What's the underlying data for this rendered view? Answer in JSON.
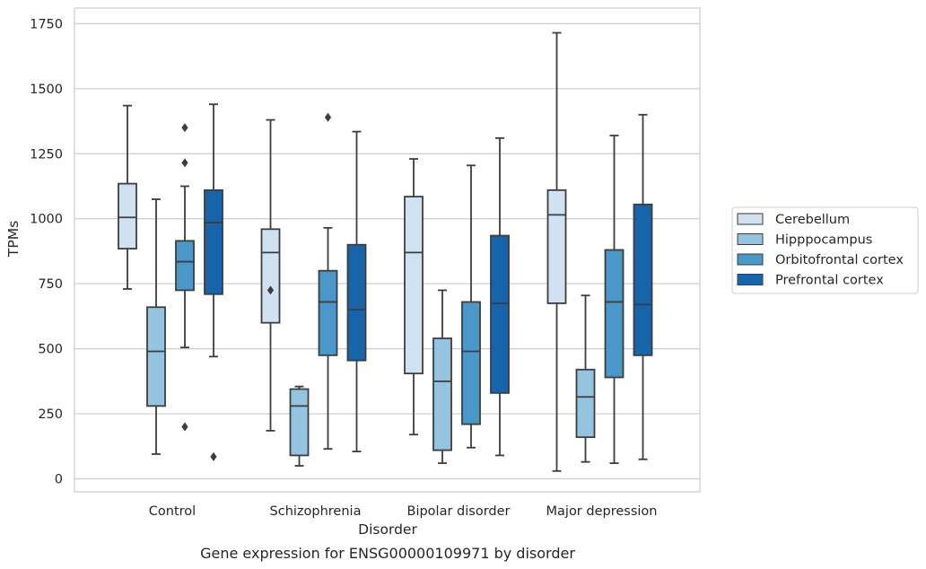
{
  "chart_data": {
    "type": "box",
    "xlabel": "Disorder",
    "ylabel": "TPMs",
    "caption": "Gene expression for ENSG00000109971 by disorder",
    "categories": [
      "Control",
      "Schizophrenia",
      "Bipolar disorder",
      "Major depression"
    ],
    "ylim": [
      -50,
      1810
    ],
    "yticks": [
      0,
      250,
      500,
      750,
      1000,
      1250,
      1500,
      1750
    ],
    "grid": "horizontal",
    "legend_position": "right",
    "series": [
      {
        "name": "Cerebellum",
        "color": "#d0e1f2",
        "boxes": [
          {
            "whislo": 730,
            "q1": 885,
            "med": 1005,
            "q3": 1135,
            "whishi": 1435,
            "fliers": []
          },
          {
            "whislo": 185,
            "q1": 600,
            "med": 870,
            "q3": 960,
            "whishi": 1380,
            "fliers": [
              725
            ]
          },
          {
            "whislo": 170,
            "q1": 405,
            "med": 870,
            "q3": 1085,
            "whishi": 1230,
            "fliers": []
          },
          {
            "whislo": 30,
            "q1": 675,
            "med": 1015,
            "q3": 1110,
            "whishi": 1715,
            "fliers": []
          }
        ]
      },
      {
        "name": "Hipppocampus",
        "color": "#94c4df",
        "boxes": [
          {
            "whislo": 95,
            "q1": 280,
            "med": 490,
            "q3": 660,
            "whishi": 1075,
            "fliers": []
          },
          {
            "whislo": 50,
            "q1": 90,
            "med": 280,
            "q3": 345,
            "whishi": 355,
            "fliers": []
          },
          {
            "whislo": 60,
            "q1": 110,
            "med": 375,
            "q3": 540,
            "whishi": 725,
            "fliers": []
          },
          {
            "whislo": 65,
            "q1": 160,
            "med": 315,
            "q3": 420,
            "whishi": 705,
            "fliers": []
          }
        ]
      },
      {
        "name": "Orbitofrontal cortex",
        "color": "#4a98c9",
        "boxes": [
          {
            "whislo": 505,
            "q1": 725,
            "med": 835,
            "q3": 915,
            "whishi": 1125,
            "fliers": [
              1350,
              1215,
              200
            ]
          },
          {
            "whislo": 115,
            "q1": 475,
            "med": 680,
            "q3": 800,
            "whishi": 965,
            "fliers": [
              1390
            ]
          },
          {
            "whislo": 120,
            "q1": 210,
            "med": 490,
            "q3": 680,
            "whishi": 1205,
            "fliers": []
          },
          {
            "whislo": 60,
            "q1": 390,
            "med": 680,
            "q3": 880,
            "whishi": 1320,
            "fliers": []
          }
        ]
      },
      {
        "name": "Prefrontal cortex",
        "color": "#1764ab",
        "boxes": [
          {
            "whislo": 470,
            "q1": 710,
            "med": 985,
            "q3": 1110,
            "whishi": 1440,
            "fliers": [
              85
            ]
          },
          {
            "whislo": 105,
            "q1": 455,
            "med": 650,
            "q3": 900,
            "whishi": 1335,
            "fliers": []
          },
          {
            "whislo": 90,
            "q1": 330,
            "med": 675,
            "q3": 935,
            "whishi": 1310,
            "fliers": []
          },
          {
            "whislo": 75,
            "q1": 475,
            "med": 670,
            "q3": 1055,
            "whishi": 1400,
            "fliers": []
          }
        ]
      }
    ]
  }
}
